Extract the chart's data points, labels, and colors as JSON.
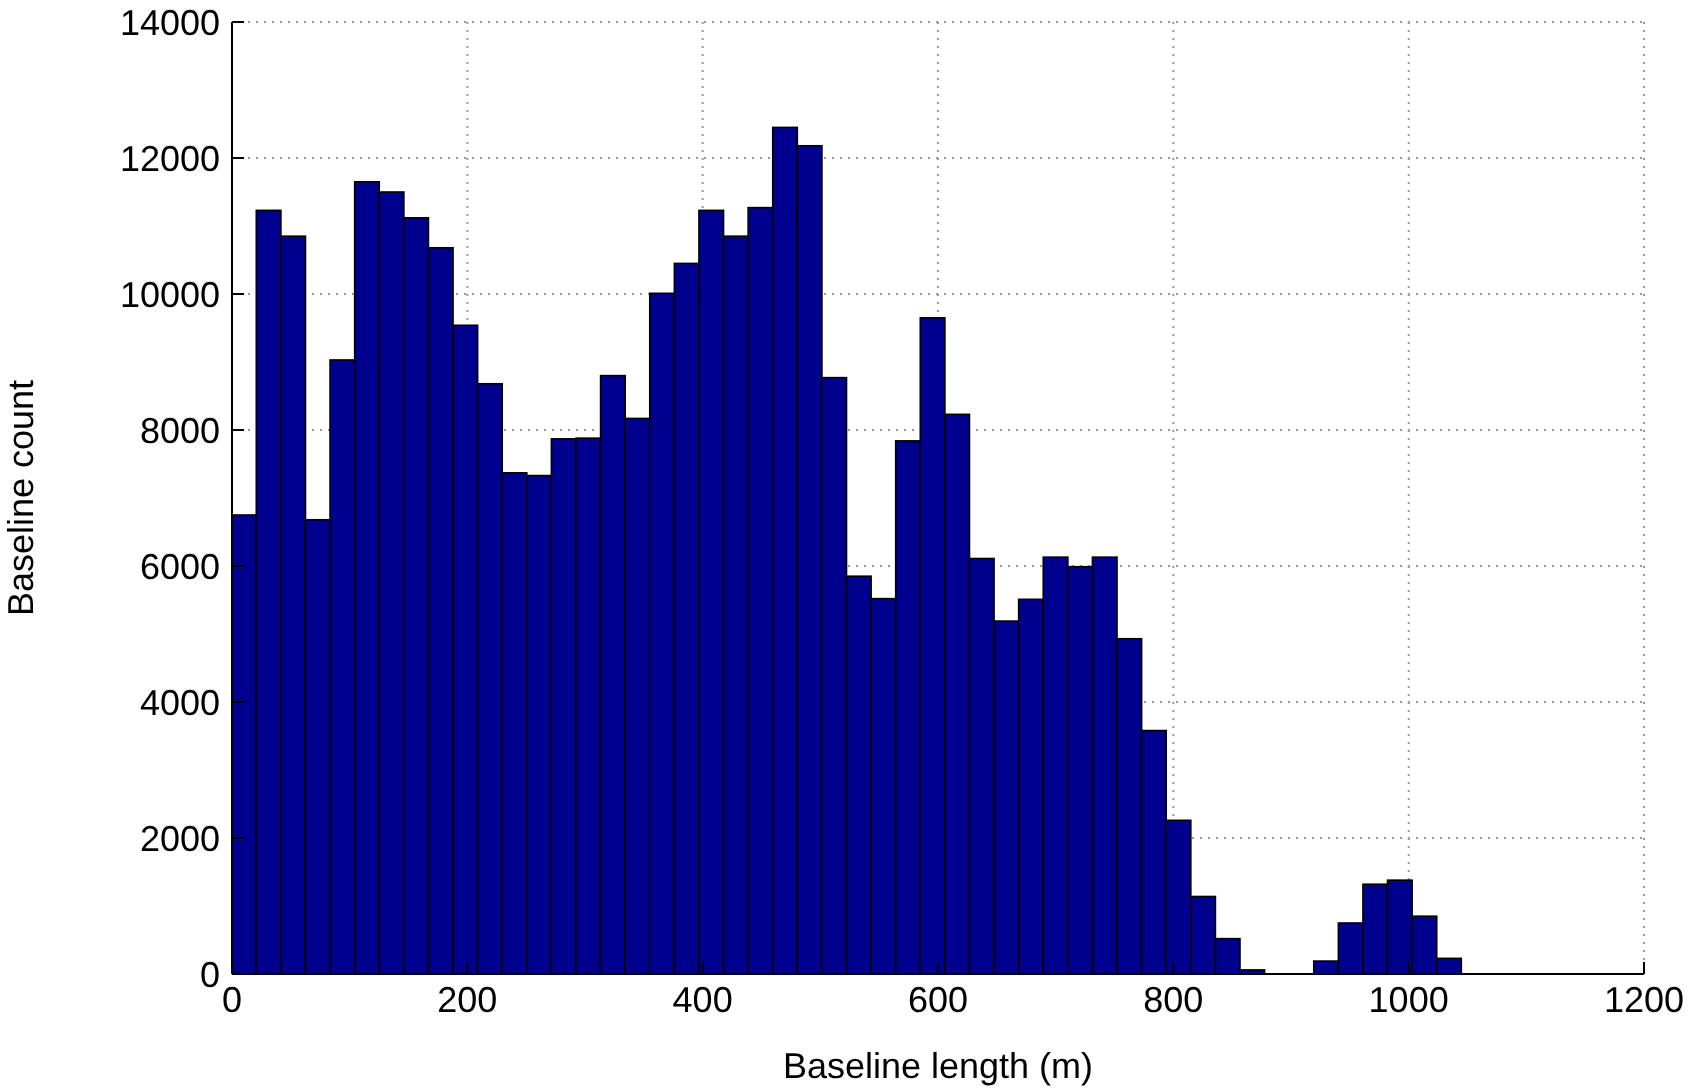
{
  "chart_data": {
    "type": "histogram",
    "xlabel": "Baseline length (m)",
    "ylabel": "Baseline count",
    "color": "#00008f",
    "bins": [
      0,
      20.9,
      41.8,
      62.7,
      83.6,
      104.5,
      125.4,
      146.3,
      167.2,
      188.1,
      209,
      229.9,
      250.8,
      271.7,
      292.6,
      313.5,
      334.4,
      355.3,
      376.2,
      397.1,
      418,
      438.9,
      459.8,
      480.7,
      501.6,
      522.5,
      543.4,
      564.3,
      585.2,
      606.1,
      627,
      647.9,
      668.8,
      689.7,
      710.6,
      731.5,
      752.4,
      773.3,
      794.2,
      815.1,
      836,
      856.9,
      877.8,
      898.7,
      919.6,
      940.5,
      961.4,
      982.3,
      1003.2,
      1024.1,
      1045
    ],
    "values": [
      6750,
      11230,
      10850,
      6680,
      9030,
      11650,
      11500,
      11120,
      10680,
      9540,
      8680,
      7370,
      7330,
      7870,
      7880,
      8800,
      8170,
      10010,
      10450,
      11230,
      10850,
      11270,
      12450,
      12180,
      8770,
      5850,
      5520,
      7840,
      9650,
      8230,
      6110,
      5190,
      5510,
      6130,
      5990,
      6130,
      4930,
      3580,
      2260,
      1140,
      520,
      60,
      0,
      0,
      190,
      750,
      1320,
      1380,
      850,
      230
    ],
    "xlim": [
      0,
      1200
    ],
    "xticks": [
      0,
      200,
      400,
      600,
      800,
      1000,
      1200
    ],
    "ylim": [
      0,
      14000
    ],
    "yticks": [
      0,
      2000,
      4000,
      6000,
      8000,
      10000,
      12000,
      14000
    ],
    "grid": true
  }
}
